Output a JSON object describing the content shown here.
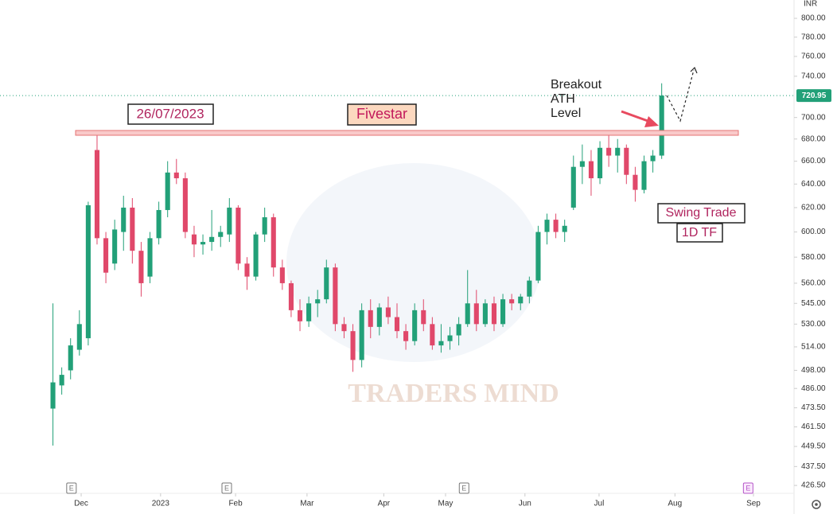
{
  "chart_data": {
    "type": "candlestick",
    "currency": "INR",
    "log_scale": true,
    "up_color": "#22a078",
    "down_color": "#e0486a",
    "last_price": 720.95,
    "ylim": [
      422,
      820
    ],
    "yticks": [
      {
        "value": 800,
        "label": "800.00"
      },
      {
        "value": 780,
        "label": "780.00"
      },
      {
        "value": 760,
        "label": "760.00"
      },
      {
        "value": 740,
        "label": "740.00"
      },
      {
        "value": 700,
        "label": "700.00"
      },
      {
        "value": 680,
        "label": "680.00"
      },
      {
        "value": 660,
        "label": "660.00"
      },
      {
        "value": 640,
        "label": "640.00"
      },
      {
        "value": 620,
        "label": "620.00"
      },
      {
        "value": 600,
        "label": "600.00"
      },
      {
        "value": 580,
        "label": "580.00"
      },
      {
        "value": 560,
        "label": "560.00"
      },
      {
        "value": 545,
        "label": "545.00"
      },
      {
        "value": 530,
        "label": "530.00"
      },
      {
        "value": 514,
        "label": "514.00"
      },
      {
        "value": 498,
        "label": "498.00"
      },
      {
        "value": 486,
        "label": "486.00"
      },
      {
        "value": 473.5,
        "label": "473.50"
      },
      {
        "value": 461.5,
        "label": "461.50"
      },
      {
        "value": 449.5,
        "label": "449.50"
      },
      {
        "value": 437.5,
        "label": "437.50"
      },
      {
        "value": 426.5,
        "label": "426.50"
      }
    ],
    "xlim": [
      -6,
      84
    ],
    "xticks": [
      {
        "value": 3.2,
        "label": "Dec"
      },
      {
        "value": 12.2,
        "label": "2023"
      },
      {
        "value": 20.7,
        "label": "Feb"
      },
      {
        "value": 28.8,
        "label": "Mar"
      },
      {
        "value": 37.5,
        "label": "Apr"
      },
      {
        "value": 44.5,
        "label": "May"
      },
      {
        "value": 53.5,
        "label": "Jun"
      },
      {
        "value": 61.9,
        "label": "Jul"
      },
      {
        "value": 70.5,
        "label": "Aug"
      },
      {
        "value": 79.4,
        "label": "Sep"
      }
    ],
    "events": [
      {
        "value": 2.1,
        "label": "E"
      },
      {
        "value": 19.7,
        "label": "E"
      },
      {
        "value": 46.6,
        "label": "E"
      },
      {
        "value": 78.8,
        "label": "E"
      }
    ],
    "candles": [
      [
        473,
        545,
        450,
        490
      ],
      [
        488,
        500,
        482,
        495
      ],
      [
        498,
        520,
        492,
        515
      ],
      [
        512,
        540,
        508,
        530
      ],
      [
        520,
        625,
        515,
        622
      ],
      [
        670,
        686,
        590,
        595
      ],
      [
        595,
        600,
        560,
        568
      ],
      [
        575,
        610,
        570,
        602
      ],
      [
        600,
        630,
        585,
        620
      ],
      [
        620,
        628,
        575,
        585
      ],
      [
        585,
        592,
        550,
        560
      ],
      [
        565,
        600,
        560,
        595
      ],
      [
        595,
        625,
        590,
        618
      ],
      [
        618,
        660,
        612,
        650
      ],
      [
        650,
        662,
        640,
        645
      ],
      [
        645,
        650,
        595,
        600
      ],
      [
        598,
        605,
        580,
        590
      ],
      [
        590,
        598,
        582,
        592
      ],
      [
        592,
        618,
        585,
        596
      ],
      [
        596,
        605,
        588,
        600
      ],
      [
        598,
        628,
        592,
        620
      ],
      [
        620,
        622,
        570,
        575
      ],
      [
        575,
        580,
        555,
        565
      ],
      [
        565,
        600,
        562,
        598
      ],
      [
        598,
        620,
        592,
        612
      ],
      [
        612,
        615,
        565,
        572
      ],
      [
        572,
        578,
        555,
        560
      ],
      [
        560,
        562,
        535,
        540
      ],
      [
        540,
        548,
        525,
        532
      ],
      [
        532,
        550,
        528,
        545
      ],
      [
        545,
        555,
        535,
        548
      ],
      [
        548,
        578,
        545,
        572
      ],
      [
        572,
        575,
        525,
        530
      ],
      [
        530,
        535,
        520,
        525
      ],
      [
        525,
        530,
        497,
        505
      ],
      [
        505,
        545,
        500,
        540
      ],
      [
        540,
        548,
        520,
        528
      ],
      [
        528,
        545,
        522,
        542
      ],
      [
        542,
        550,
        530,
        535
      ],
      [
        535,
        545,
        520,
        525
      ],
      [
        525,
        530,
        512,
        518
      ],
      [
        518,
        545,
        515,
        540
      ],
      [
        540,
        548,
        525,
        530
      ],
      [
        530,
        535,
        512,
        515
      ],
      [
        515,
        530,
        510,
        518
      ],
      [
        518,
        528,
        512,
        522
      ],
      [
        522,
        535,
        515,
        530
      ],
      [
        530,
        570,
        528,
        545
      ],
      [
        545,
        555,
        525,
        530
      ],
      [
        530,
        548,
        528,
        545
      ],
      [
        545,
        550,
        525,
        530
      ],
      [
        530,
        552,
        528,
        548
      ],
      [
        548,
        552,
        540,
        545
      ],
      [
        545,
        552,
        540,
        550
      ],
      [
        550,
        565,
        545,
        562
      ],
      [
        562,
        605,
        560,
        600
      ],
      [
        600,
        615,
        590,
        610
      ],
      [
        610,
        615,
        595,
        600
      ],
      [
        600,
        610,
        592,
        605
      ],
      [
        620,
        665,
        618,
        655
      ],
      [
        655,
        675,
        640,
        660
      ],
      [
        660,
        670,
        630,
        645
      ],
      [
        645,
        678,
        640,
        672
      ],
      [
        672,
        685,
        655,
        665
      ],
      [
        665,
        680,
        650,
        672
      ],
      [
        672,
        675,
        640,
        648
      ],
      [
        648,
        655,
        625,
        635
      ],
      [
        635,
        665,
        632,
        660
      ],
      [
        660,
        670,
        650,
        665
      ],
      [
        665,
        733,
        662,
        721
      ]
    ],
    "watermark": "TRADERS MIND",
    "annotations": {
      "date": "26/07/2023",
      "name": "Fivestar",
      "breakout": [
        "Breakout",
        "ATH",
        "Level"
      ],
      "swing": "Swing Trade",
      "timeframe": "1D TF"
    }
  }
}
